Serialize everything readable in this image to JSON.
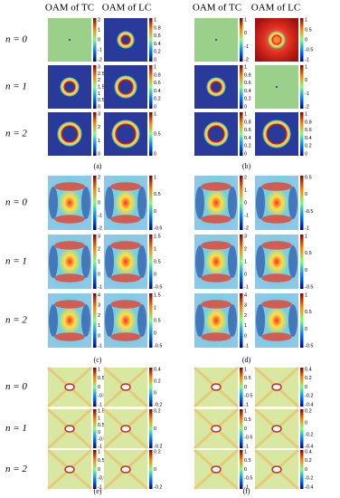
{
  "header": [
    "OAM of TC",
    "OAM of LC",
    "OAM of TC",
    "OAM of LC"
  ],
  "sections": [
    {
      "row_labels": [
        "n = 0",
        "n = 1",
        "n = 2"
      ],
      "panels": [
        {
          "label": "(a)",
          "rows": [
            [
              [
                "2",
                "1",
                "0",
                "-1",
                "-2"
              ],
              [
                "1",
                "0.8",
                "0.6",
                "0.4",
                "0.2",
                "0"
              ]
            ],
            [
              [
                "3",
                "2.5",
                "2",
                "1.5",
                "1",
                "0.5",
                "0"
              ],
              [
                "1",
                "0.8",
                "0.6",
                "0.4",
                "0.2",
                "0"
              ]
            ],
            [
              [
                "3",
                "2",
                "1",
                "0"
              ],
              [
                "1",
                "0.5",
                "0"
              ]
            ]
          ]
        },
        {
          "label": "(b)",
          "rows": [
            [
              [
                "1",
                "0",
                "-1",
                "-2"
              ],
              [
                "1",
                "0.5",
                "0",
                "-0.5",
                "-1"
              ]
            ],
            [
              [
                "1",
                "0.8",
                "0.6",
                "0.4",
                "0.2",
                "0"
              ],
              [
                "1",
                "0",
                "-1",
                "-2"
              ]
            ],
            [
              [
                "1",
                "0.8",
                "0.6",
                "0.4",
                "0.2",
                "0"
              ],
              [
                "1",
                "0.8",
                "0.6",
                "0.4",
                "0.2",
                "0"
              ]
            ]
          ]
        }
      ]
    },
    {
      "row_labels": [
        "n = 0",
        "n = 1",
        "n = 2"
      ],
      "panels": [
        {
          "label": "(c)",
          "rows": [
            [
              [
                "2",
                "1",
                "0",
                "-1",
                "-2"
              ],
              [
                "1",
                "0.5",
                "0",
                "-0.5"
              ]
            ],
            [
              [
                "3",
                "2",
                "1",
                "0",
                "-1"
              ],
              [
                "1.5",
                "1",
                "0.5",
                "0",
                "-0.5"
              ]
            ],
            [
              [
                "4",
                "3",
                "2",
                "1",
                "0",
                "-1"
              ],
              [
                "1.5",
                "1",
                "0.5",
                "0",
                "-0.5"
              ]
            ]
          ]
        },
        {
          "label": "(d)",
          "rows": [
            [
              [
                "2",
                "1",
                "0",
                "-1",
                "-2"
              ],
              [
                "0.5",
                "0",
                "-0.5",
                "-1"
              ]
            ],
            [
              [
                "3",
                "2",
                "1",
                "0",
                "-1"
              ],
              [
                "1",
                "0.5",
                "0",
                "-0.5"
              ]
            ],
            [
              [
                "4",
                "3",
                "2",
                "1",
                "0",
                "-1"
              ],
              [
                "1",
                "0.5",
                "0",
                "-0.5"
              ]
            ]
          ]
        }
      ]
    },
    {
      "row_labels": [
        "n = 0",
        "n = 1",
        "n = 2"
      ],
      "panels": [
        {
          "label": "(e)",
          "rows": [
            [
              [
                "1",
                "0.5",
                "0",
                "-0.5",
                "-1"
              ],
              [
                "0.4",
                "0.2",
                "0",
                "-0.2"
              ]
            ],
            [
              [
                "1.5",
                "1",
                "0.5",
                "0",
                "-0.5",
                "-1"
              ],
              [
                "0.2",
                "0",
                "-0.2"
              ]
            ],
            [
              [
                "1",
                "0.5",
                "0",
                "-0.5",
                "-1"
              ],
              [
                "0.2",
                "0",
                "-0.2"
              ]
            ]
          ]
        },
        {
          "label": "(f)",
          "rows": [
            [
              [
                "1",
                "0.5",
                "0",
                "-0.5",
                "-1"
              ],
              [
                "0.4",
                "0.2",
                "0",
                "-0.2",
                "-0.4"
              ]
            ],
            [
              [
                "1",
                "0.5",
                "0",
                "-0.5",
                "-1"
              ],
              [
                "0.2",
                "0",
                "-0.2",
                "-0.4"
              ]
            ],
            [
              [
                "1",
                "0.5",
                "0",
                "-0.5",
                "-1"
              ],
              [
                "0.4",
                "0.2",
                "0",
                "-0.2",
                "-0.4"
              ]
            ]
          ]
        }
      ]
    }
  ]
}
